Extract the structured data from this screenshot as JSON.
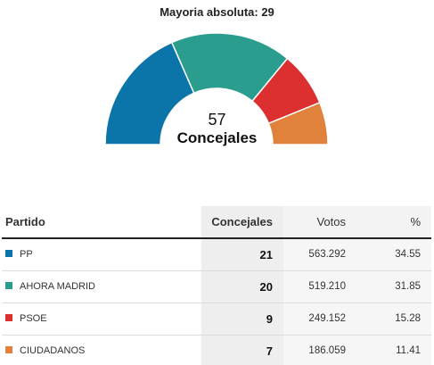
{
  "header": {
    "majority_label": "Mayoria absoluta: 29"
  },
  "center": {
    "total": "57",
    "label": "Concejales"
  },
  "table": {
    "headers": {
      "party": "Partido",
      "seats": "Concejales",
      "votes": "Votos",
      "pct": "%"
    },
    "rows": [
      {
        "party": "PP",
        "seats": "21",
        "votes": "563.292",
        "pct": "34.55",
        "color": "#0b74a8"
      },
      {
        "party": "AHORA MADRID",
        "seats": "20",
        "votes": "519.210",
        "pct": "31.85",
        "color": "#2a9d8f"
      },
      {
        "party": "PSOE",
        "seats": "9",
        "votes": "249.152",
        "pct": "15.28",
        "color": "#dc2f2f"
      },
      {
        "party": "CIUDADANOS",
        "seats": "7",
        "votes": "186.059",
        "pct": "11.41",
        "color": "#e0823c"
      }
    ]
  },
  "chart_data": {
    "type": "pie",
    "subtype": "half-donut",
    "title": "Mayoria absoluta: 29",
    "total_seats": 57,
    "categories": [
      "PP",
      "AHORA MADRID",
      "PSOE",
      "CIUDADANOS"
    ],
    "values": [
      21,
      20,
      9,
      7
    ],
    "colors": [
      "#0b74a8",
      "#2a9d8f",
      "#dc2f2f",
      "#e0823c"
    ]
  }
}
